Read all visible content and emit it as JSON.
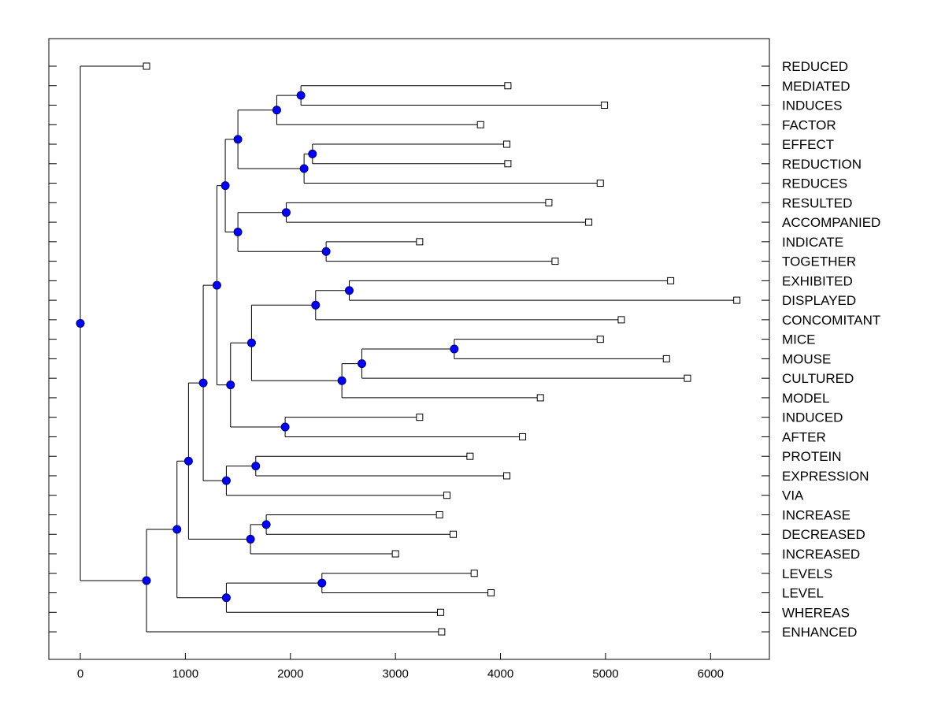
{
  "chart_data": {
    "type": "dendrogram",
    "title": "",
    "xlabel": "",
    "ylabel": "",
    "xlim": [
      -300,
      6560
    ],
    "x_ticks": [
      0,
      1000,
      2000,
      3000,
      4000,
      5000,
      6000
    ],
    "grid": false,
    "colors": {
      "node_fill": "#0000ff",
      "node_stroke": "#000066",
      "line": "#000000",
      "leaf_fill": "#ffffff",
      "axis": "#000000"
    },
    "leaves": [
      {
        "label": "REDUCED",
        "x": 630
      },
      {
        "label": "MEDIATED",
        "x": 4070
      },
      {
        "label": "INDUCES",
        "x": 4990
      },
      {
        "label": "FACTOR",
        "x": 3810
      },
      {
        "label": "EFFECT",
        "x": 4060
      },
      {
        "label": "REDUCTION",
        "x": 4070
      },
      {
        "label": "REDUCES",
        "x": 4950
      },
      {
        "label": "RESULTED",
        "x": 4460
      },
      {
        "label": "ACCOMPANIED",
        "x": 4840
      },
      {
        "label": "INDICATE",
        "x": 3230
      },
      {
        "label": "TOGETHER",
        "x": 4520
      },
      {
        "label": "EXHIBITED",
        "x": 5620
      },
      {
        "label": "DISPLAYED",
        "x": 6250
      },
      {
        "label": "CONCOMITANT",
        "x": 5150
      },
      {
        "label": "MICE",
        "x": 4950
      },
      {
        "label": "MOUSE",
        "x": 5580
      },
      {
        "label": "CULTURED",
        "x": 5780
      },
      {
        "label": "MODEL",
        "x": 4380
      },
      {
        "label": "INDUCED",
        "x": 3230
      },
      {
        "label": "AFTER",
        "x": 4210
      },
      {
        "label": "PROTEIN",
        "x": 3710
      },
      {
        "label": "EXPRESSION",
        "x": 4060
      },
      {
        "label": "VIA",
        "x": 3490
      },
      {
        "label": "INCREASE",
        "x": 3420
      },
      {
        "label": "DECREASED",
        "x": 3550
      },
      {
        "label": "INCREASED",
        "x": 3000
      },
      {
        "label": "LEVELS",
        "x": 3750
      },
      {
        "label": "LEVEL",
        "x": 3910
      },
      {
        "label": "WHEREAS",
        "x": 3430
      },
      {
        "label": "ENHANCED",
        "x": 3440
      }
    ],
    "merges": [
      {
        "id": "n1",
        "x": 2100,
        "children": [
          "L1",
          "L2"
        ]
      },
      {
        "id": "n2",
        "x": 1870,
        "children": [
          "n1",
          "L3"
        ]
      },
      {
        "id": "n3",
        "x": 2210,
        "children": [
          "L4",
          "L5"
        ]
      },
      {
        "id": "n4",
        "x": 2130,
        "children": [
          "n3",
          "L6"
        ]
      },
      {
        "id": "n5",
        "x": 1500,
        "children": [
          "n2",
          "n4"
        ]
      },
      {
        "id": "n6",
        "x": 1960,
        "children": [
          "L7",
          "L8"
        ]
      },
      {
        "id": "n7",
        "x": 2340,
        "children": [
          "L9",
          "L10"
        ]
      },
      {
        "id": "n8",
        "x": 1500,
        "children": [
          "n6",
          "n7"
        ]
      },
      {
        "id": "n9",
        "x": 1380,
        "children": [
          "n5",
          "n8"
        ]
      },
      {
        "id": "n10",
        "x": 2560,
        "children": [
          "L11",
          "L12"
        ]
      },
      {
        "id": "n11",
        "x": 2240,
        "children": [
          "n10",
          "L13"
        ]
      },
      {
        "id": "n12",
        "x": 3560,
        "children": [
          "L14",
          "L15"
        ]
      },
      {
        "id": "n13",
        "x": 2680,
        "children": [
          "n12",
          "L16"
        ]
      },
      {
        "id": "n14",
        "x": 2490,
        "children": [
          "n13",
          "L17"
        ]
      },
      {
        "id": "n15",
        "x": 1630,
        "children": [
          "n11",
          "n14"
        ]
      },
      {
        "id": "n16",
        "x": 1950,
        "children": [
          "L18",
          "L19"
        ]
      },
      {
        "id": "n17",
        "x": 1430,
        "children": [
          "n15",
          "n16"
        ]
      },
      {
        "id": "n18",
        "x": 1300,
        "children": [
          "n9",
          "n17"
        ]
      },
      {
        "id": "n19",
        "x": 1670,
        "children": [
          "L20",
          "L21"
        ]
      },
      {
        "id": "n20",
        "x": 1390,
        "children": [
          "n19",
          "L22"
        ]
      },
      {
        "id": "n21",
        "x": 1170,
        "children": [
          "n18",
          "n20"
        ]
      },
      {
        "id": "n22",
        "x": 1770,
        "children": [
          "L23",
          "L24"
        ]
      },
      {
        "id": "n23",
        "x": 1620,
        "children": [
          "n22",
          "L25"
        ]
      },
      {
        "id": "n24",
        "x": 1030,
        "children": [
          "n21",
          "n23"
        ]
      },
      {
        "id": "n25",
        "x": 2300,
        "children": [
          "L26",
          "L27"
        ]
      },
      {
        "id": "n26",
        "x": 1390,
        "children": [
          "n25",
          "L28"
        ]
      },
      {
        "id": "n27",
        "x": 920,
        "children": [
          "n24",
          "n26"
        ]
      },
      {
        "id": "n28",
        "x": 630,
        "children": [
          "n27",
          "L29"
        ]
      },
      {
        "id": "n29",
        "x": 0,
        "children": [
          "L0",
          "n28"
        ]
      }
    ]
  }
}
